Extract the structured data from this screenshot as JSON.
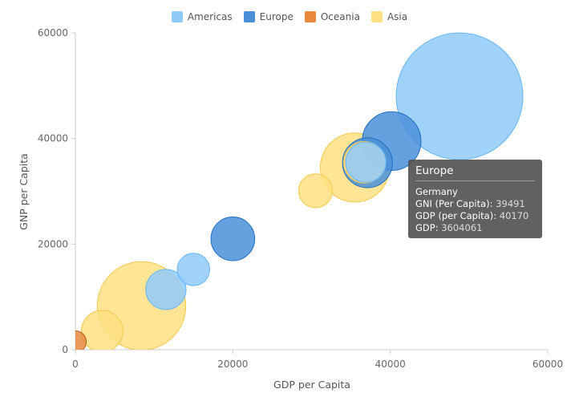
{
  "legend": [
    {
      "name": "Americas",
      "color": "#90caf9"
    },
    {
      "name": "Europe",
      "color": "#4a90d9"
    },
    {
      "name": "Oceania",
      "color": "#e8893c"
    },
    {
      "name": "Asia",
      "color": "#ffe082"
    }
  ],
  "tooltip": {
    "title": "Europe",
    "country": "Germany",
    "gni_label": "GNI (Per Capita):",
    "gni_value": "39491",
    "gdppc_label": "GDP (per Capita):",
    "gdppc_value": "40170",
    "gdp_label": "GDP:",
    "gdp_value": "3604061"
  },
  "chart_data": {
    "type": "scatter",
    "xlabel": "GDP per Capita",
    "ylabel": "GNP per Capita",
    "xlim": [
      0,
      60000
    ],
    "ylim": [
      0,
      60000
    ],
    "xticks": [
      "0",
      "20000",
      "40000",
      "60000"
    ],
    "yticks": [
      "0",
      "20000",
      "40000",
      "60000"
    ],
    "grid": false,
    "legend_position": "top-center",
    "series": [
      {
        "name": "Americas",
        "color": "#90caf9",
        "stroke": "#64b5f6",
        "points": [
          {
            "x": 48800,
            "y": 48000,
            "gdp": 16800000
          },
          {
            "x": 15000,
            "y": 15200,
            "gdp": 1100000
          },
          {
            "x": 11500,
            "y": 11400,
            "gdp": 1700000
          },
          {
            "x": 36900,
            "y": 35500,
            "gdp": 1700000
          }
        ]
      },
      {
        "name": "Europe",
        "color": "#4a90d9",
        "stroke": "#1e6fc4",
        "points": [
          {
            "x": 40170,
            "y": 39491,
            "gdp": 3604061
          },
          {
            "x": 20000,
            "y": 21000,
            "gdp": 2000000
          },
          {
            "x": 37100,
            "y": 35400,
            "gdp": 2600000
          }
        ]
      },
      {
        "name": "Oceania",
        "color": "#e8893c",
        "stroke": "#b8621f",
        "points": [
          {
            "x": 0,
            "y": 1500,
            "gdp": 500000
          }
        ]
      },
      {
        "name": "Asia",
        "color": "#ffe082",
        "stroke": "#f5c74a",
        "points": [
          {
            "x": 35500,
            "y": 34500,
            "gdp": 5000000
          },
          {
            "x": 30500,
            "y": 30100,
            "gdp": 1200000
          },
          {
            "x": 8400,
            "y": 8300,
            "gdp": 8200000
          },
          {
            "x": 3400,
            "y": 3500,
            "gdp": 1800000
          },
          {
            "x": 36700,
            "y": 35500,
            "gdp": 1800000
          }
        ]
      }
    ]
  }
}
